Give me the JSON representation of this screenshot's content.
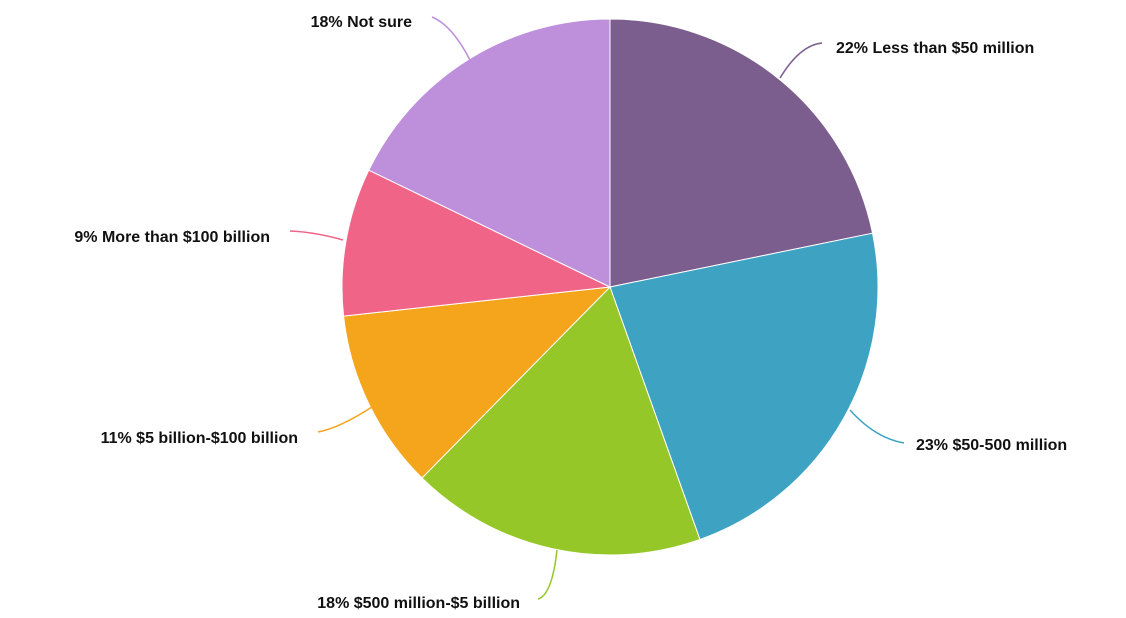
{
  "chart_data": {
    "type": "pie",
    "title": "",
    "slices": [
      {
        "label": "22% Less than $50 million",
        "value": 22,
        "color": "#7B5E8E"
      },
      {
        "label": "23% $50-500 million",
        "value": 23,
        "color": "#3EA3C2"
      },
      {
        "label": "18% $500 million-$5 billion",
        "value": 18,
        "color": "#96C728"
      },
      {
        "label": "11% $5 billion-$100 billion",
        "value": 11,
        "color": "#F4A51C"
      },
      {
        "label": "9% More than $100 billion",
        "value": 9,
        "color": "#F06487"
      },
      {
        "label": "18% Not sure",
        "value": 18,
        "color": "#BE8FDB"
      }
    ],
    "start": "top",
    "direction": "clockwise",
    "legend": "none"
  }
}
